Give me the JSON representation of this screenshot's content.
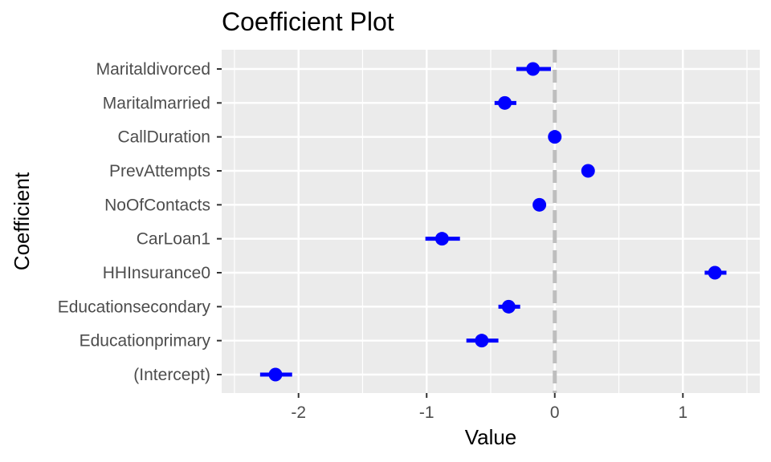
{
  "chart_data": {
    "type": "scatter",
    "title": "Coefficient Plot",
    "xlabel": "Value",
    "ylabel": "Coefficient",
    "xlim": [
      -2.6,
      1.6
    ],
    "x_ticks": [
      -2,
      -1,
      0,
      1
    ],
    "x_tick_labels": [
      "-2",
      "-1",
      "0",
      "1"
    ],
    "categories": [
      "Maritaldivorced",
      "Maritalmarried",
      "CallDuration",
      "PrevAttempts",
      "NoOfContacts",
      "CarLoan1",
      "HHInsurance0",
      "Educationsecondary",
      "Educationprimary",
      "(Intercept)"
    ],
    "estimates": [
      -0.17,
      -0.39,
      0.0,
      0.26,
      -0.12,
      -0.88,
      1.25,
      -0.36,
      -0.57,
      -2.18
    ],
    "lower": [
      -0.3,
      -0.47,
      -0.01,
      0.25,
      -0.14,
      -1.01,
      1.17,
      -0.44,
      -0.69,
      -2.3
    ],
    "upper": [
      -0.03,
      -0.3,
      0.01,
      0.27,
      -0.1,
      -0.74,
      1.34,
      -0.27,
      -0.44,
      -2.05
    ],
    "reference_line": 0,
    "grid": true,
    "colors": {
      "point": "#0000ff",
      "reference_line": "#bebebe",
      "panel_background": "#ebebeb",
      "grid": "#ffffff"
    }
  }
}
